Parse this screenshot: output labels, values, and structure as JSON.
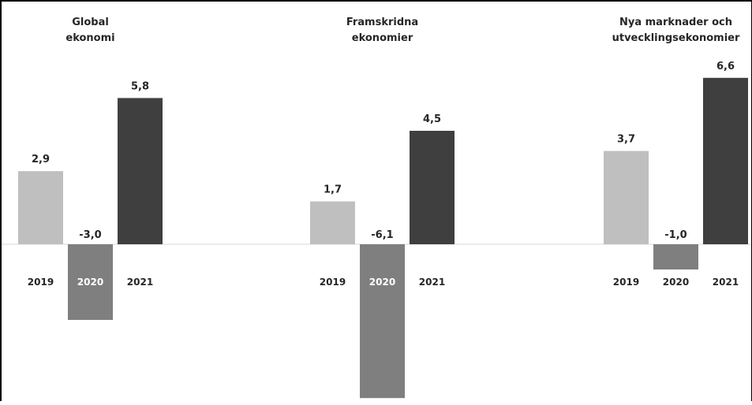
{
  "chart_data": {
    "type": "bar",
    "groups": [
      {
        "title": [
          "Global",
          "ekonomi"
        ],
        "categories": [
          "2019",
          "2020",
          "2021"
        ],
        "values": [
          2.9,
          -3.0,
          5.8
        ],
        "labels": [
          "2,9",
          "-3,0",
          "5,8"
        ]
      },
      {
        "title": [
          "Framskridna",
          "ekonomier"
        ],
        "categories": [
          "2019",
          "2020",
          "2021"
        ],
        "values": [
          1.7,
          -6.1,
          4.5
        ],
        "labels": [
          "1,7",
          "-6,1",
          "4,5"
        ]
      },
      {
        "title": [
          "Nya marknader och",
          "utvecklingsekonomier"
        ],
        "categories": [
          "2019",
          "2020",
          "2021"
        ],
        "values": [
          3.7,
          -1.0,
          6.6
        ],
        "labels": [
          "3,7",
          "-1,0",
          "6,6"
        ]
      }
    ],
    "colors": {
      "2019": "#bfbfbf",
      "2020": "#7f7f7f",
      "2021": "#3f3f3f"
    },
    "grid": false,
    "legend": "none"
  }
}
